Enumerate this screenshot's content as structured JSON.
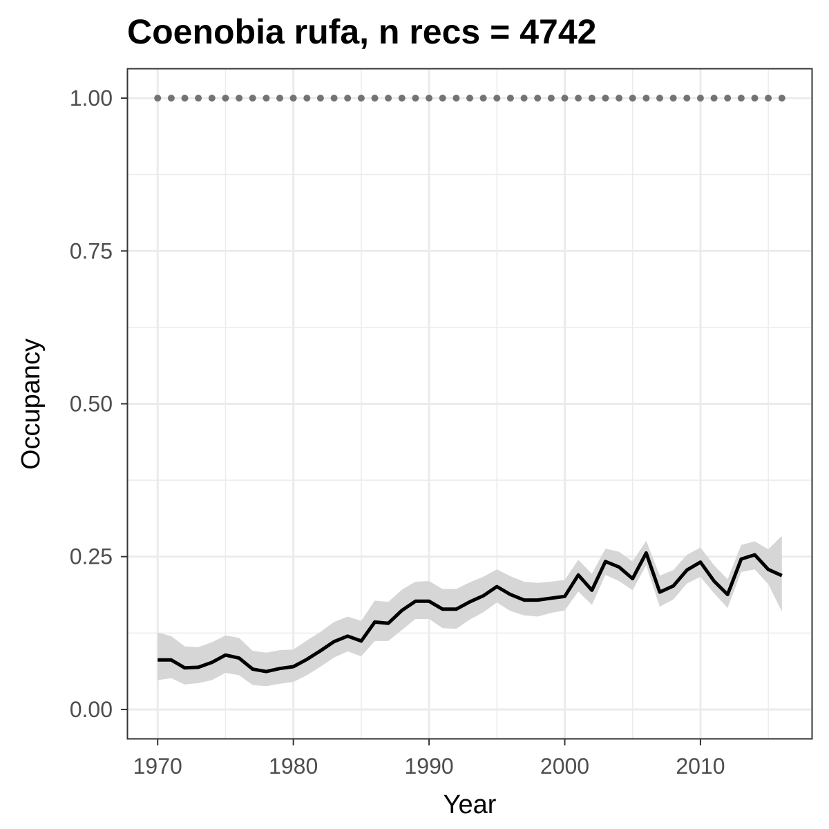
{
  "chart_data": {
    "type": "line",
    "title": "Coenobia rufa, n recs = 4742",
    "xlabel": "Year",
    "ylabel": "Occupancy",
    "xlim": [
      1967.8,
      2018.2
    ],
    "ylim": [
      -0.0475,
      1.0475
    ],
    "x_ticks": [
      1970,
      1980,
      1990,
      2000,
      2010
    ],
    "x_tick_labels": [
      "1970",
      "1980",
      "1990",
      "2000",
      "2010"
    ],
    "y_ticks": [
      0.0,
      0.25,
      0.5,
      0.75,
      1.0
    ],
    "y_tick_labels": [
      "0.00",
      "0.25",
      "0.50",
      "0.75",
      "1.00"
    ],
    "grid": true,
    "colors": {
      "line": "#000000",
      "ribbon": "#d6d6d6",
      "points": "#737373",
      "grid": "#ebebeb",
      "panel_border": "#333333"
    },
    "series": [
      {
        "type": "ribbon-line",
        "x": [
          1970,
          1971,
          1972,
          1973,
          1974,
          1975,
          1976,
          1977,
          1978,
          1979,
          1980,
          1981,
          1982,
          1983,
          1984,
          1985,
          1986,
          1987,
          1988,
          1989,
          1990,
          1991,
          1992,
          1993,
          1994,
          1995,
          1996,
          1997,
          1998,
          1999,
          2000,
          2001,
          2002,
          2003,
          2004,
          2005,
          2006,
          2007,
          2008,
          2009,
          2010,
          2011,
          2012,
          2013,
          2014,
          2015,
          2016
        ],
        "y": [
          0.081,
          0.081,
          0.068,
          0.069,
          0.077,
          0.089,
          0.084,
          0.066,
          0.062,
          0.067,
          0.07,
          0.082,
          0.096,
          0.111,
          0.12,
          0.112,
          0.143,
          0.141,
          0.162,
          0.177,
          0.177,
          0.164,
          0.164,
          0.176,
          0.186,
          0.201,
          0.188,
          0.179,
          0.179,
          0.182,
          0.185,
          0.22,
          0.195,
          0.242,
          0.233,
          0.214,
          0.256,
          0.192,
          0.202,
          0.228,
          0.241,
          0.21,
          0.188,
          0.246,
          0.253,
          0.229,
          0.219
        ],
        "lower": [
          0.048,
          0.051,
          0.041,
          0.043,
          0.048,
          0.06,
          0.056,
          0.04,
          0.038,
          0.042,
          0.045,
          0.056,
          0.07,
          0.085,
          0.095,
          0.087,
          0.112,
          0.112,
          0.13,
          0.148,
          0.148,
          0.133,
          0.132,
          0.147,
          0.159,
          0.175,
          0.161,
          0.154,
          0.152,
          0.158,
          0.162,
          0.193,
          0.171,
          0.22,
          0.21,
          0.195,
          0.236,
          0.168,
          0.18,
          0.206,
          0.217,
          0.19,
          0.166,
          0.225,
          0.229,
          0.205,
          0.16
        ],
        "upper": [
          0.126,
          0.12,
          0.103,
          0.102,
          0.11,
          0.121,
          0.117,
          0.096,
          0.093,
          0.097,
          0.098,
          0.113,
          0.127,
          0.143,
          0.152,
          0.145,
          0.178,
          0.176,
          0.196,
          0.209,
          0.21,
          0.197,
          0.197,
          0.208,
          0.217,
          0.229,
          0.218,
          0.209,
          0.207,
          0.209,
          0.212,
          0.245,
          0.222,
          0.263,
          0.258,
          0.242,
          0.276,
          0.219,
          0.228,
          0.253,
          0.265,
          0.236,
          0.213,
          0.269,
          0.275,
          0.262,
          0.284
        ]
      },
      {
        "type": "points",
        "x": [
          1970,
          1971,
          1972,
          1973,
          1974,
          1975,
          1976,
          1977,
          1978,
          1979,
          1980,
          1981,
          1982,
          1983,
          1984,
          1985,
          1986,
          1987,
          1988,
          1989,
          1990,
          1991,
          1992,
          1993,
          1994,
          1995,
          1996,
          1997,
          1998,
          1999,
          2000,
          2001,
          2002,
          2003,
          2004,
          2005,
          2006,
          2007,
          2008,
          2009,
          2010,
          2011,
          2012,
          2013,
          2014,
          2015,
          2016
        ],
        "y": [
          1,
          1,
          1,
          1,
          1,
          1,
          1,
          1,
          1,
          1,
          1,
          1,
          1,
          1,
          1,
          1,
          1,
          1,
          1,
          1,
          1,
          1,
          1,
          1,
          1,
          1,
          1,
          1,
          1,
          1,
          1,
          1,
          1,
          1,
          1,
          1,
          1,
          1,
          1,
          1,
          1,
          1,
          1,
          1,
          1,
          1,
          1
        ]
      }
    ]
  }
}
